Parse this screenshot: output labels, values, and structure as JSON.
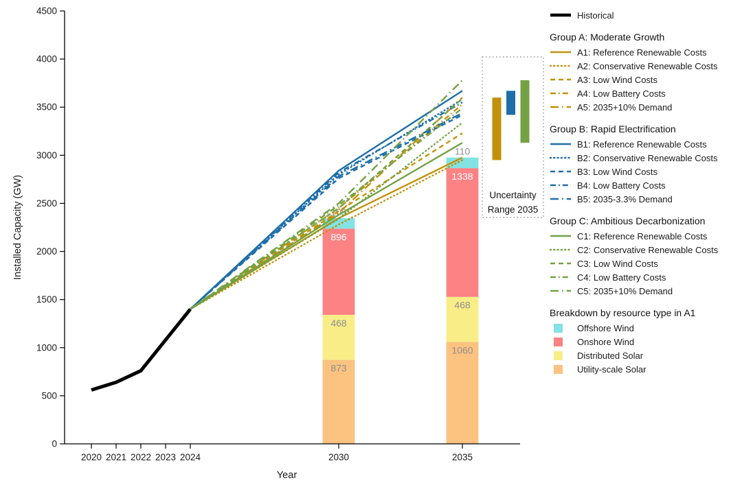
{
  "chart_data": {
    "type": "line",
    "title": "",
    "xlabel": "Year",
    "ylabel": "Installed Capacity (GW)",
    "x_ticks": [
      2020,
      2021,
      2022,
      2023,
      2024,
      2030,
      2035
    ],
    "y_ticks": [
      0,
      500,
      1000,
      1500,
      2000,
      2500,
      3000,
      3500,
      4000,
      4500
    ],
    "ylim": [
      0,
      4500
    ],
    "grid": false,
    "legend_position": "right",
    "historical": {
      "label": "Historical",
      "color": "#000000",
      "x": [
        2020,
        2021,
        2022,
        2023,
        2024
      ],
      "values": [
        560,
        640,
        760,
        1080,
        1400
      ]
    },
    "groups": [
      {
        "id": "A",
        "title": "Group A: Moderate Growth",
        "color": "#C2910C",
        "uncertainty_2035": [
          2950,
          3600
        ],
        "series": [
          {
            "id": "A1",
            "label": "A1: Reference Renewable Costs",
            "style": "solid",
            "x": [
              2024,
              2030,
              2035
            ],
            "values": [
              1400,
              2346,
              2976
            ]
          },
          {
            "id": "A2",
            "label": "A2: Conservative Renewable Costs",
            "style": "dotted",
            "x": [
              2024,
              2030,
              2035
            ],
            "values": [
              1400,
              2280,
              2950
            ]
          },
          {
            "id": "A3",
            "label": "A3: Low Wind Costs",
            "style": "dashed",
            "x": [
              2024,
              2030,
              2035
            ],
            "values": [
              1400,
              2420,
              3230
            ]
          },
          {
            "id": "A4",
            "label": "A4: Low Battery Costs",
            "style": "dashdot",
            "x": [
              2024,
              2030,
              2035
            ],
            "values": [
              1400,
              2450,
              3530
            ]
          },
          {
            "id": "A5",
            "label": "A5: 2035+10% Demand",
            "style": "longdashdot",
            "x": [
              2024,
              2030,
              2035
            ],
            "values": [
              1400,
              2400,
              3600
            ]
          }
        ]
      },
      {
        "id": "B",
        "title": "Group B: Rapid Electrification",
        "color": "#1E6EA8",
        "uncertainty_2035": [
          3420,
          3670
        ],
        "series": [
          {
            "id": "B1",
            "label": "B1: Reference Renewable Costs",
            "style": "solid",
            "x": [
              2024,
              2030,
              2035
            ],
            "values": [
              1400,
              2840,
              3670
            ]
          },
          {
            "id": "B2",
            "label": "B2: Conservative Renewable Costs",
            "style": "dotted",
            "x": [
              2024,
              2030,
              2035
            ],
            "values": [
              1400,
              2800,
              3580
            ]
          },
          {
            "id": "B3",
            "label": "B3: Low Wind Costs",
            "style": "dashed",
            "x": [
              2024,
              2030,
              2035
            ],
            "values": [
              1400,
              2760,
              3420
            ]
          },
          {
            "id": "B4",
            "label": "B4: Low Battery Costs",
            "style": "dashdot",
            "x": [
              2024,
              2030,
              2035
            ],
            "values": [
              1400,
              2820,
              3550
            ]
          },
          {
            "id": "B5",
            "label": "B5: 2035-3.3% Demand",
            "style": "longdashdot",
            "x": [
              2024,
              2030,
              2035
            ],
            "values": [
              1400,
              2780,
              3440
            ]
          }
        ]
      },
      {
        "id": "C",
        "title": "Group C: Ambitious Decarbonization",
        "color": "#74A144",
        "uncertainty_2035": [
          3130,
          3780
        ],
        "series": [
          {
            "id": "C1",
            "label": "C1: Reference Renewable Costs",
            "style": "solid",
            "x": [
              2024,
              2030,
              2035
            ],
            "values": [
              1400,
              2380,
              3130
            ]
          },
          {
            "id": "C2",
            "label": "C2: Conservative Renewable Costs",
            "style": "dotted",
            "x": [
              2024,
              2030,
              2035
            ],
            "values": [
              1400,
              2340,
              3340
            ]
          },
          {
            "id": "C3",
            "label": "C3: Low Wind Costs",
            "style": "dashed",
            "x": [
              2024,
              2030,
              2035
            ],
            "values": [
              1400,
              2450,
              3590
            ]
          },
          {
            "id": "C4",
            "label": "C4: Low Battery Costs",
            "style": "dashdot",
            "x": [
              2024,
              2030,
              2035
            ],
            "values": [
              1400,
              2480,
              3490
            ]
          },
          {
            "id": "C5",
            "label": "C5: 2035+10% Demand",
            "style": "longdashdot",
            "x": [
              2024,
              2030,
              2035
            ],
            "values": [
              1400,
              2500,
              3780
            ]
          }
        ]
      }
    ],
    "stacked_bars": {
      "title": "Breakdown by resource type in A1",
      "categories": [
        2030,
        2035
      ],
      "bar_width_years": 1.3,
      "series": [
        {
          "name": "Utility-scale Solar",
          "color": "#FBC280",
          "values": [
            873,
            1060
          ],
          "label_color": "#909090"
        },
        {
          "name": "Distributed Solar",
          "color": "#F8ED87",
          "values": [
            468,
            468
          ],
          "label_color": "#909090"
        },
        {
          "name": "Onshore Wind",
          "color": "#FC8284",
          "values": [
            896,
            1338
          ],
          "label_color": "#FFFFFF"
        },
        {
          "name": "Offshore Wind",
          "color": "#83E2E3",
          "values": [
            109,
            110
          ],
          "label_color": "#909090"
        }
      ],
      "legend_display_order": [
        "Offshore Wind",
        "Onshore Wind",
        "Distributed Solar",
        "Utility-scale Solar"
      ]
    },
    "uncertainty_box": {
      "label_line1": "Uncertainty",
      "label_line2": "Range 2035"
    }
  }
}
